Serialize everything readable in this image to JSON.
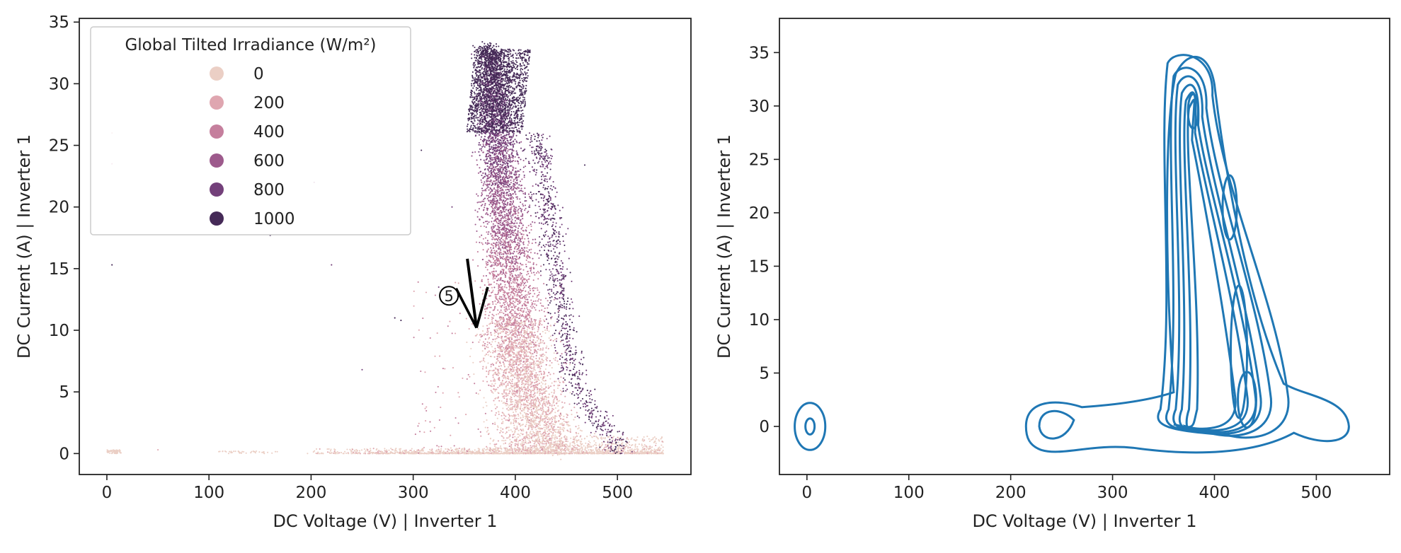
{
  "chart_data": [
    {
      "type": "scatter",
      "xlabel": "DC Voltage (V) | Inverter 1",
      "ylabel": "DC Current (A) | Inverter 1",
      "xlim": [
        -27,
        572
      ],
      "ylim": [
        -1.7,
        35.3
      ],
      "xticks": [
        0,
        100,
        200,
        300,
        400,
        500
      ],
      "yticks": [
        0,
        5,
        10,
        15,
        20,
        25,
        30,
        35
      ],
      "grid": false,
      "legend": {
        "title": "Global Tilted Irradiance (W/m²)",
        "placement": "top-left",
        "entries": [
          {
            "label": "0",
            "color": "#ebcfc5"
          },
          {
            "label": "200",
            "color": "#dfa6b0"
          },
          {
            "label": "400",
            "color": "#c57f9d"
          },
          {
            "label": "600",
            "color": "#9d5a8c"
          },
          {
            "label": "800",
            "color": "#73407a"
          },
          {
            "label": "1000",
            "color": "#452a57"
          }
        ]
      },
      "clusters": [
        {
          "series": "0",
          "x_range": [
            190,
            545
          ],
          "y_range": [
            0,
            0.4
          ],
          "density": "very high"
        },
        {
          "series": "200",
          "x_range": [
            380,
            480
          ],
          "y_range": [
            0,
            12
          ],
          "density": "high"
        },
        {
          "series": "600",
          "x_range": [
            360,
            480
          ],
          "y_range": [
            5,
            25
          ],
          "density": "high"
        },
        {
          "series": "1000",
          "x_range": [
            350,
            440
          ],
          "y_range": [
            20,
            33
          ],
          "density": "high"
        }
      ],
      "annotation": {
        "label": "5",
        "x": 335,
        "y": 12.8,
        "arrow_to": [
          362,
          10.2
        ]
      }
    },
    {
      "type": "contour",
      "xlabel": "DC Voltage (V) | Inverter 1",
      "ylabel": "DC Current (A) | Inverter 1",
      "xlim": [
        -27,
        572
      ],
      "ylim": [
        -4.5,
        38.2
      ],
      "xticks": [
        0,
        100,
        200,
        300,
        400,
        500
      ],
      "yticks": [
        0,
        5,
        10,
        15,
        20,
        25,
        30,
        35
      ],
      "grid": false,
      "line_color": "#1f77b4",
      "density_modes": [
        {
          "x": 3,
          "y": 0
        },
        {
          "x": 240,
          "y": 0
        },
        {
          "x": 378,
          "y": 29.5
        },
        {
          "x": 415,
          "y": 20.5
        },
        {
          "x": 428,
          "y": 1.5
        }
      ]
    }
  ]
}
